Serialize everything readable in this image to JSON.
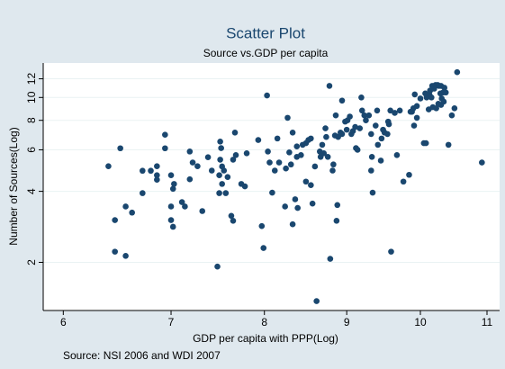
{
  "chart_data": {
    "type": "scatter",
    "title": "Scatter Plot",
    "subtitle": "Source vs.GDP per capita",
    "x_label": "GDP per capita with PPP(Log)",
    "y_label": "Number of Sources(Log)",
    "note": "Source: NSI 2006 and WDI 2007",
    "color": "#1a476f",
    "xscale": "log",
    "yscale": "log",
    "grid": true,
    "xlim": [
      5.83,
      11.2
    ],
    "ylim": [
      1.25,
      14
    ],
    "xticks": [
      6,
      7,
      8,
      9,
      10,
      11
    ],
    "yticks": [
      2,
      4,
      6,
      8,
      10,
      12
    ],
    "x": [
      6.4,
      6.46,
      6.46,
      6.51,
      6.56,
      6.56,
      6.62,
      6.72,
      6.72,
      6.8,
      6.86,
      6.86,
      6.86,
      6.94,
      6.94,
      7.0,
      7.0,
      7.0,
      7.02,
      7.02,
      7.03,
      7.11,
      7.14,
      7.19,
      7.19,
      7.22,
      7.27,
      7.32,
      7.38,
      7.42,
      7.5,
      7.5,
      7.51,
      7.51,
      7.52,
      7.53,
      7.55,
      7.48,
      7.53,
      7.57,
      7.59,
      7.63,
      7.65,
      7.65,
      7.67,
      7.68,
      7.74,
      7.78,
      7.8,
      7.93,
      7.97,
      7.99,
      8.03,
      8.04,
      8.06,
      8.09,
      8.12,
      8.15,
      8.17,
      8.24,
      8.25,
      8.27,
      8.29,
      8.31,
      8.33,
      8.33,
      8.36,
      8.38,
      8.38,
      8.39,
      8.43,
      8.45,
      8.49,
      8.49,
      8.52,
      8.55,
      8.55,
      8.57,
      8.6,
      8.62,
      8.66,
      8.67,
      8.69,
      8.71,
      8.73,
      8.74,
      8.76,
      8.78,
      8.79,
      8.82,
      8.83,
      8.85,
      8.86,
      8.87,
      8.88,
      8.89,
      8.92,
      8.94,
      8.94,
      8.98,
      9.0,
      9.01,
      9.04,
      9.06,
      9.08,
      9.11,
      9.12,
      9.14,
      9.17,
      9.19,
      9.2,
      9.23,
      9.25,
      9.29,
      9.32,
      9.32,
      9.33,
      9.34,
      9.38,
      9.4,
      9.41,
      9.45,
      9.46,
      9.48,
      9.5,
      9.54,
      9.55,
      9.56,
      9.58,
      9.59,
      9.64,
      9.67,
      9.71,
      9.76,
      9.84,
      9.86,
      9.88,
      9.9,
      9.91,
      9.92,
      9.95,
      9.95,
      10.0,
      10.05,
      10.07,
      10.08,
      10.09,
      10.12,
      10.13,
      10.14,
      10.16,
      10.17,
      10.18,
      10.2,
      10.22,
      10.23,
      10.25,
      10.26,
      10.27,
      10.29,
      10.3,
      10.3,
      10.31,
      10.33,
      10.34,
      10.35,
      10.37,
      10.41,
      10.46,
      10.5,
      10.54,
      10.92
    ],
    "values": [
      5.11,
      2.22,
      3.02,
      6.09,
      3.45,
      2.13,
      3.25,
      4.89,
      3.93,
      4.89,
      4.68,
      4.48,
      5.11,
      6.95,
      6.09,
      4.68,
      3.45,
      3.02,
      2.83,
      4.1,
      4.3,
      3.6,
      3.45,
      5.9,
      4.5,
      5.3,
      5.11,
      3.3,
      5.58,
      4.9,
      4.68,
      3.93,
      5.45,
      6.5,
      6.1,
      5.1,
      4.9,
      1.92,
      4.3,
      3.93,
      4.6,
      3.15,
      3.0,
      5.45,
      7.1,
      5.7,
      4.3,
      4.2,
      5.8,
      6.6,
      2.85,
      2.3,
      10.2,
      5.9,
      5.3,
      3.95,
      4.9,
      6.7,
      5.3,
      3.45,
      5.0,
      8.2,
      5.85,
      5.2,
      7.1,
      2.9,
      3.7,
      5.6,
      6.2,
      3.4,
      5.7,
      6.3,
      4.4,
      6.4,
      6.6,
      6.7,
      4.25,
      3.55,
      5.1,
      1.37,
      5.9,
      5.6,
      6.3,
      5.8,
      7.4,
      6.8,
      5.6,
      11.2,
      2.07,
      4.9,
      5.2,
      6.9,
      8.4,
      3.0,
      3.5,
      6.8,
      7.1,
      7.0,
      9.7,
      7.9,
      7.3,
      8.0,
      8.3,
      7.0,
      7.2,
      7.5,
      6.1,
      6.0,
      7.4,
      10.0,
      8.8,
      8.4,
      8.0,
      8.4,
      7.0,
      4.9,
      5.6,
      3.95,
      7.6,
      8.8,
      6.3,
      5.4,
      6.7,
      7.3,
      7.1,
      7.0,
      7.9,
      7.7,
      8.8,
      2.22,
      8.6,
      5.7,
      8.8,
      4.4,
      4.7,
      8.7,
      8.7,
      9.0,
      7.6,
      10.3,
      9.2,
      8.2,
      9.9,
      6.4,
      10.4,
      6.4,
      10.0,
      8.9,
      10.3,
      10.7,
      10.0,
      11.2,
      9.1,
      10.9,
      11.3,
      9.0,
      11.3,
      9.4,
      11.2,
      10.4,
      11.2,
      9.3,
      9.9,
      10.5,
      9.6,
      11.0,
      10.5,
      6.3,
      8.4,
      9.0,
      12.8,
      5.3
    ]
  }
}
